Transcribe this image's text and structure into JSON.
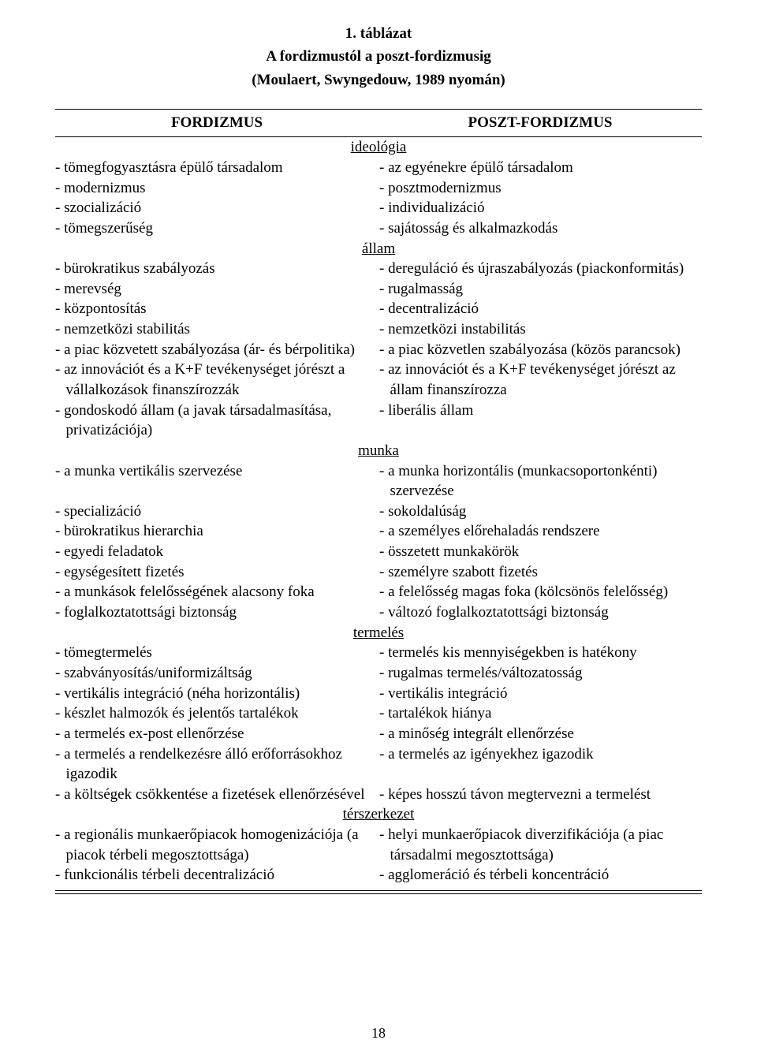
{
  "title": {
    "line1": "1. táblázat",
    "line2": "A fordizmustól a poszt-fordizmusig",
    "line3": "(Moulaert, Swyngedouw, 1989 nyomán)"
  },
  "headers": {
    "left": "FORDIZMUS",
    "right": "POSZT-FORDIZMUS"
  },
  "sections": [
    {
      "heading": "ideológia",
      "rows": [
        {
          "left": "- tömegfogyasztásra épülő társadalom",
          "right": "- az egyénekre épülő társadalom"
        },
        {
          "left": "- modernizmus",
          "right": "- posztmodernizmus"
        },
        {
          "left": "- szocializáció",
          "right": "- individualizáció"
        },
        {
          "left": "- tömegszerűség",
          "right": "- sajátosság és alkalmazkodás"
        }
      ]
    },
    {
      "heading": "állam",
      "rows": [
        {
          "left": "- bürokratikus szabályozás",
          "right": "- dereguláció és újraszabályozás (piackonformitás)"
        },
        {
          "left": "- merevség",
          "right": "- rugalmasság"
        },
        {
          "left": "- központosítás",
          "right": "- decentralizáció"
        },
        {
          "left": "- nemzetközi stabilitás",
          "right": "- nemzetközi instabilitás"
        },
        {
          "left": "- a piac közvetett szabályozása (ár- és bérpolitika)",
          "right": "- a piac közvetlen szabályozása (közös parancsok)"
        },
        {
          "left": "- az innovációt és a K+F tevékenységet jórészt a vállalkozások finanszírozzák",
          "right": "- az innovációt és a K+F tevékenységet jórészt az állam finanszírozza"
        },
        {
          "left": "- gondoskodó állam (a javak társadalmasítása, privatizációja)",
          "right": "- liberális állam"
        }
      ]
    },
    {
      "heading": "munka",
      "rows": [
        {
          "left": "- a munka vertikális szervezése",
          "right": "- a munka horizontális (munkacsoportonkénti) szervezése"
        },
        {
          "left": "- specializáció",
          "right": "- sokoldalúság"
        },
        {
          "left": "- bürokratikus hierarchia",
          "right": "- a személyes előrehaladás rendszere"
        },
        {
          "left": "- egyedi feladatok",
          "right": "- összetett munkakörök"
        },
        {
          "left": "- egységesített fizetés",
          "right": "- személyre szabott fizetés"
        },
        {
          "left": "- a munkások felelősségének alacsony foka",
          "right": "- a felelősség magas foka (kölcsönös felelősség)"
        },
        {
          "left": "- foglalkoztatottsági biztonság",
          "right": "- változó foglalkoztatottsági biztonság"
        }
      ]
    },
    {
      "heading": "termelés",
      "rows": [
        {
          "left": "- tömegtermelés",
          "right": "- termelés kis mennyiségekben is hatékony"
        },
        {
          "left": "- szabványosítás/uniformizáltság",
          "right": "- rugalmas termelés/változatosság"
        },
        {
          "left": "- vertikális integráció (néha horizontális)",
          "right": "- vertikális integráció"
        },
        {
          "left": "- készlet halmozók és jelentős tartalékok",
          "right": "- tartalékok hiánya"
        },
        {
          "left": "- a termelés ex-post ellenőrzése",
          "right": "- a minőség integrált ellenőrzése"
        },
        {
          "left": "- a termelés a rendelkezésre álló erőforrásokhoz igazodik",
          "right": "- a termelés az igényekhez igazodik"
        },
        {
          "left": "- a költségek csökkentése a fizetések ellenőrzésével",
          "right": "- képes hosszú távon megtervezni a termelést"
        }
      ]
    },
    {
      "heading": "térszerkezet",
      "rows": [
        {
          "left": "- a regionális munkaerőpiacok homogenizációja (a piacok térbeli megosztottsága)",
          "right": "- helyi munkaerőpiacok diverzifikációja (a piac társadalmi megosztottsága)"
        },
        {
          "left": "- funkcionális térbeli decentralizáció",
          "right": "- agglomeráció és térbeli koncentráció"
        }
      ]
    }
  ],
  "page_number": "18"
}
